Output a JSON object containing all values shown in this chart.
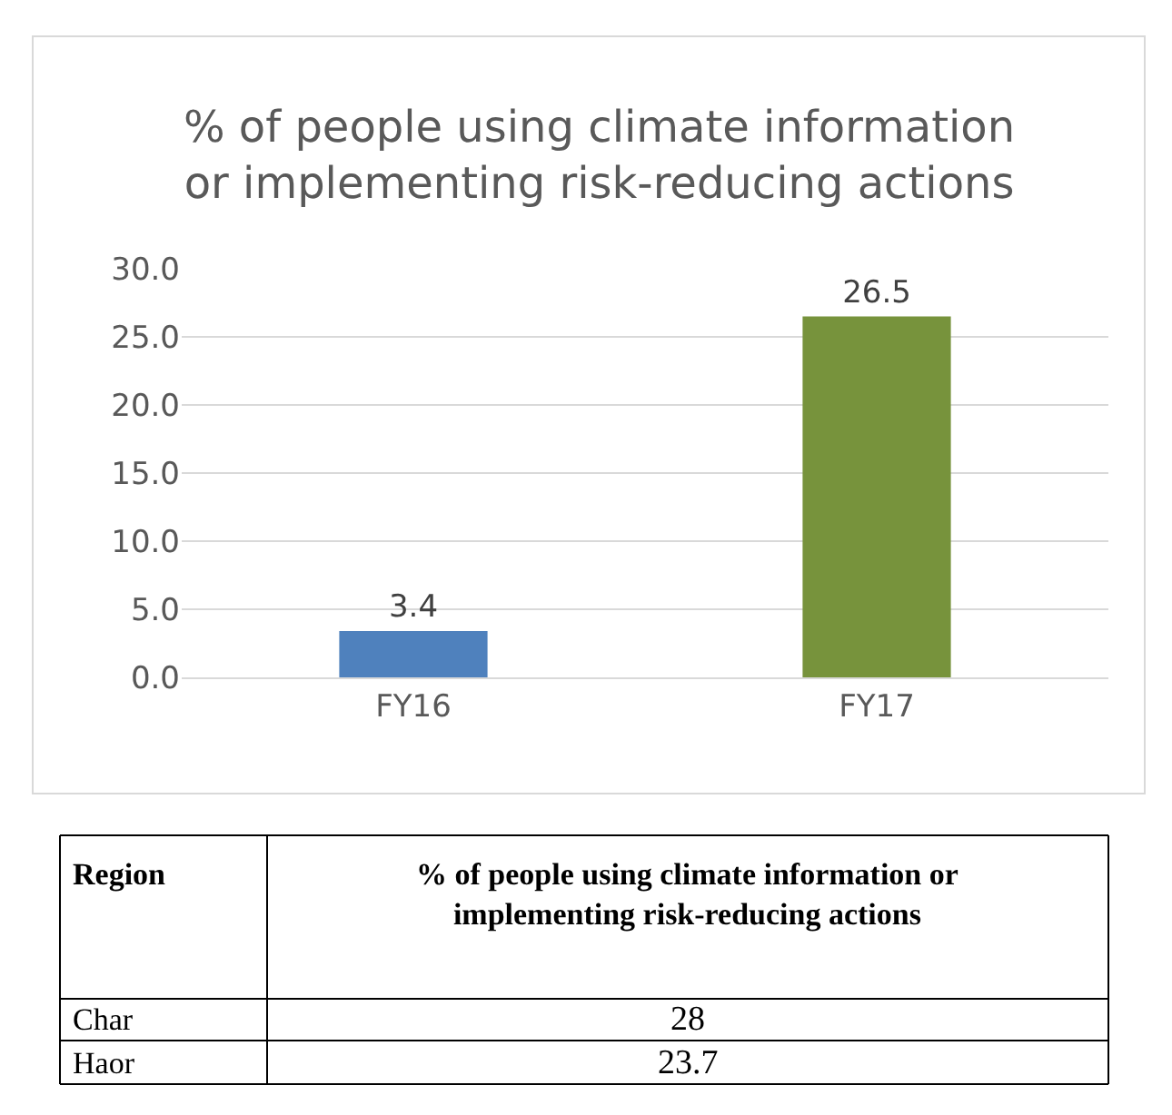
{
  "chart_data": {
    "type": "bar",
    "title": "% of people using climate information or implementing risk-reducing actions",
    "categories": [
      "FY16",
      "FY17"
    ],
    "values": [
      3.4,
      26.5
    ],
    "colors": [
      "#4f81bd",
      "#77933c"
    ],
    "ylim": [
      0,
      30
    ],
    "yticks": [
      {
        "value": 0,
        "label": "0.0"
      },
      {
        "value": 5,
        "label": "5.0"
      },
      {
        "value": 10,
        "label": "10.0"
      },
      {
        "value": 15,
        "label": "15.0"
      },
      {
        "value": 20,
        "label": "20.0"
      },
      {
        "value": 25,
        "label": "25.0"
      },
      {
        "value": 30,
        "label": "30.0"
      }
    ],
    "grid": "y",
    "data_labels": true,
    "annotations": [
      "Region",
      "% of people using climate information or implementing risk-reducing actions",
      "Char",
      "28",
      "Haor",
      "23.7"
    ]
  }
}
